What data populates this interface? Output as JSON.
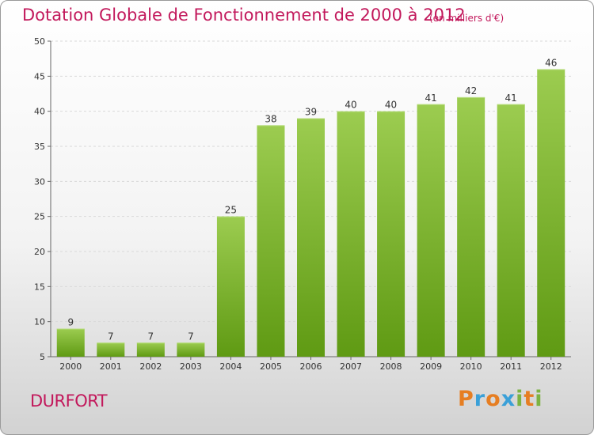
{
  "header": {
    "title": "Dotation Globale de Fonctionnement de 2000 à 2012",
    "unit": "(en milliers d'€)"
  },
  "footer": {
    "commune": "DURFORT",
    "logo": "Proxiti"
  },
  "colors": {
    "title": "#c2185b",
    "bar_light": "#9ccc50",
    "bar_dark": "#5f9a13",
    "logo_letters": [
      "#e67e22",
      "#3aa0d8",
      "#e67e22",
      "#3aa0d8",
      "#7cb342",
      "#e67e22",
      "#7cb342"
    ]
  },
  "chart_data": {
    "type": "bar",
    "categories": [
      "2000",
      "2001",
      "2002",
      "2003",
      "2004",
      "2005",
      "2006",
      "2007",
      "2008",
      "2009",
      "2010",
      "2011",
      "2012"
    ],
    "values": [
      9,
      7,
      7,
      7,
      25,
      38,
      39,
      40,
      40,
      41,
      42,
      41,
      46
    ],
    "ylim": [
      5,
      50
    ],
    "yticks": [
      5,
      10,
      15,
      20,
      25,
      30,
      35,
      40,
      45,
      50
    ],
    "grid": true,
    "data_labels": true
  }
}
